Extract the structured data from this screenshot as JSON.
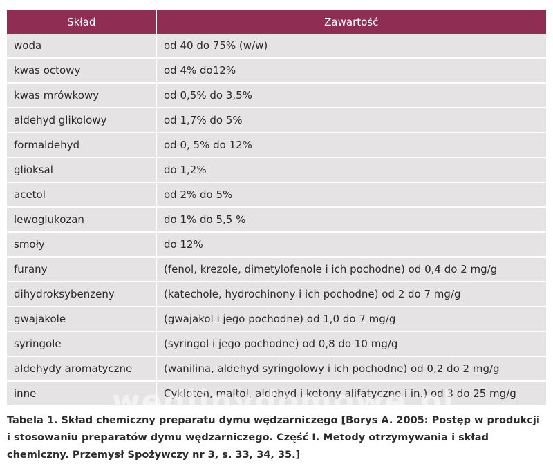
{
  "table": {
    "headers": [
      "Skład",
      "Zawartość"
    ],
    "rows": [
      [
        "woda",
        "od 40 do 75% (w/w)"
      ],
      [
        "kwas octowy",
        "od 4% do12%"
      ],
      [
        "kwas mrówkowy",
        "od 0,5% do 3,5%"
      ],
      [
        "aldehyd glikolowy",
        "od 1,7% do 5%"
      ],
      [
        "formaldehyd",
        "od 0, 5% do 12%"
      ],
      [
        "glioksal",
        "do 1,2%"
      ],
      [
        "acetol",
        "od 2% do 5%"
      ],
      [
        "lewoglukozan",
        "do 1% do 5,5 %"
      ],
      [
        "smoły",
        "do 12%"
      ],
      [
        "furany",
        "(fenol, krezole, dimetylofenole i ich pochodne) od 0,4 do 2 mg/g"
      ],
      [
        "dihydroksybenzeny",
        "(katechole, hydrochinony i ich pochodne) od 2 do 7 mg/g"
      ],
      [
        "gwajakole",
        "(gwajakol i jego pochodne) od 1,0 do 7 mg/g"
      ],
      [
        "syringole",
        "(syringol i jego pochodne) od 0,8 do 10 mg/g"
      ],
      [
        "aldehydy aromatyczne",
        "(wanilina, aldehyd syringolowy i ich pochodne) od 0,2 do 2 mg/g"
      ],
      [
        "inne",
        "Cykloten, maltol, aldehyd i ketony alifatyczne i in.) od 3 do 25 mg/g"
      ]
    ]
  },
  "watermark": "wedlinydomowe.pl",
  "caption": "Tabela 1. Skład chemiczny preparatu dymu wędzarniczego [Borys A. 2005: Postęp w produkcji i stosowaniu preparatów dymu wędzarniczego. Część I. Metody otrzymywania i skład chemiczny. Przemysł Spożywczy nr 3, s. 33, 34, 35.]",
  "colors": {
    "header_bg": "#8f2d52",
    "row_bg": "#e5e3e3"
  }
}
